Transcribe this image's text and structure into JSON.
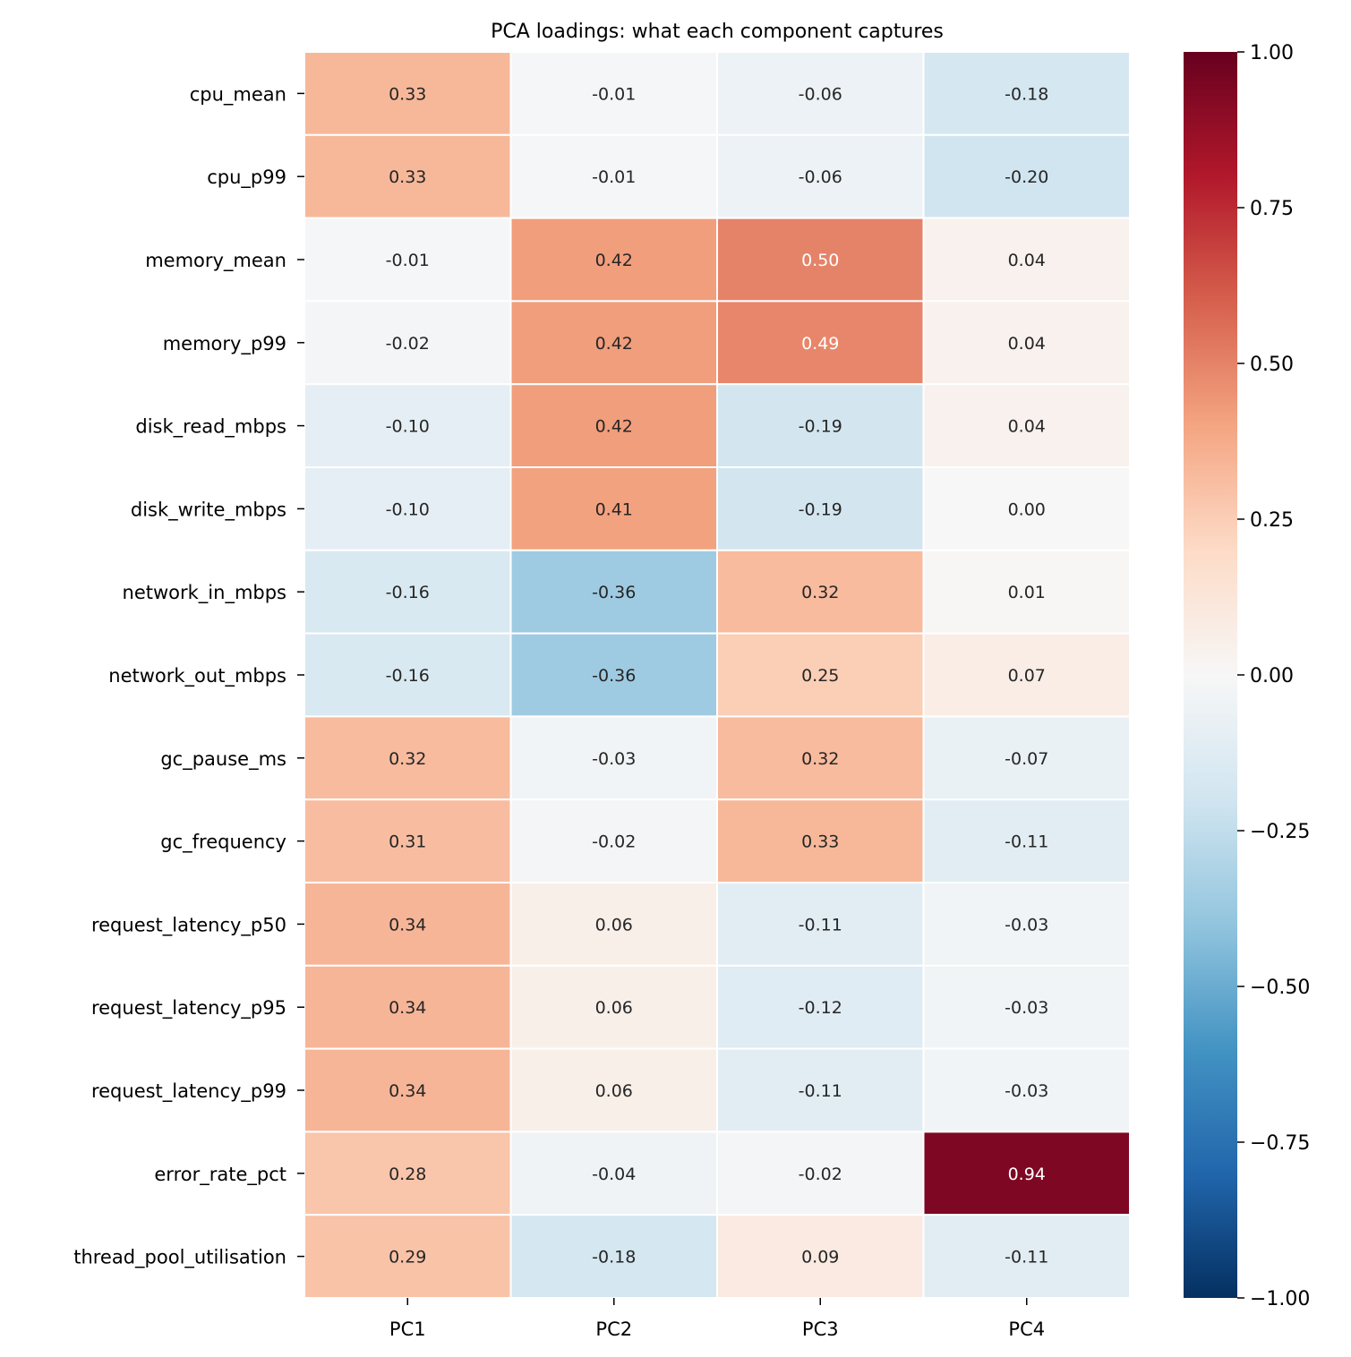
{
  "chart_data": {
    "type": "heatmap",
    "title": "PCA loadings: what each component captures",
    "xlabel": "",
    "ylabel": "",
    "columns": [
      "PC1",
      "PC2",
      "PC3",
      "PC4"
    ],
    "rows": [
      "cpu_mean",
      "cpu_p99",
      "memory_mean",
      "memory_p99",
      "disk_read_mbps",
      "disk_write_mbps",
      "network_in_mbps",
      "network_out_mbps",
      "gc_pause_ms",
      "gc_frequency",
      "request_latency_p50",
      "request_latency_p95",
      "request_latency_p99",
      "error_rate_pct",
      "thread_pool_utilisation"
    ],
    "values": [
      [
        0.33,
        -0.01,
        -0.06,
        -0.18
      ],
      [
        0.33,
        -0.01,
        -0.06,
        -0.2
      ],
      [
        -0.01,
        0.42,
        0.5,
        0.04
      ],
      [
        -0.02,
        0.42,
        0.49,
        0.04
      ],
      [
        -0.1,
        0.42,
        -0.19,
        0.04
      ],
      [
        -0.1,
        0.41,
        -0.19,
        0.0
      ],
      [
        -0.16,
        -0.36,
        0.32,
        0.01
      ],
      [
        -0.16,
        -0.36,
        0.25,
        0.07
      ],
      [
        0.32,
        -0.03,
        0.32,
        -0.07
      ],
      [
        0.31,
        -0.02,
        0.33,
        -0.11
      ],
      [
        0.34,
        0.06,
        -0.11,
        -0.03
      ],
      [
        0.34,
        0.06,
        -0.12,
        -0.03
      ],
      [
        0.34,
        0.06,
        -0.11,
        -0.03
      ],
      [
        0.28,
        -0.04,
        -0.02,
        0.94
      ],
      [
        0.29,
        -0.18,
        0.09,
        -0.11
      ]
    ],
    "colormap": "RdBu_r",
    "vmin": -1,
    "vmax": 1,
    "annotations": true,
    "colorbar": {
      "position": "right",
      "ticks": [
        1.0,
        0.75,
        0.5,
        0.25,
        0.0,
        -0.25,
        -0.5,
        -0.75,
        -1.0
      ],
      "tick_labels": [
        "1.00",
        "0.75",
        "0.50",
        "0.25",
        "0.00",
        "−0.25",
        "−0.50",
        "−0.75",
        "−1.00"
      ]
    }
  }
}
